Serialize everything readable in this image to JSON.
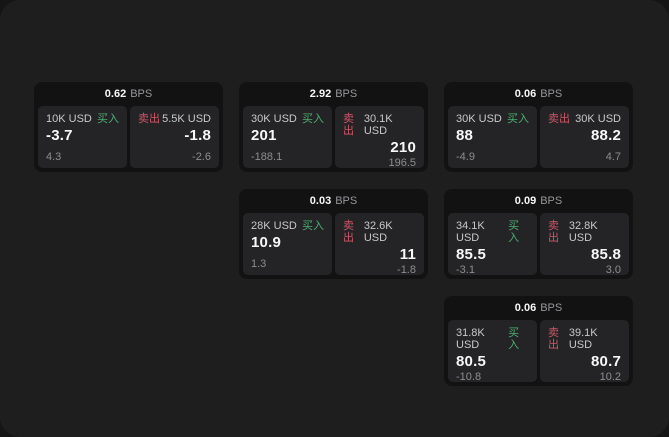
{
  "colors": {
    "window_bg": "#1e1e1f",
    "card_bg": "#121213",
    "panel_bg": "#242426",
    "buy_green": "#4cae71",
    "sell_red": "#cf5567",
    "primary_text": "#f7f7f8",
    "muted_text": "#8d8d90"
  },
  "labels": {
    "buy": "买入",
    "sell": "卖出",
    "bps_unit": "BPS"
  },
  "cards": [
    {
      "row": 1,
      "col": 1,
      "header": {
        "value": "0.62",
        "unit": "BPS"
      },
      "buy": {
        "amount": "10K USD",
        "side_label": "买入",
        "price": "-3.7",
        "delta": "4.3"
      },
      "sell": {
        "side_label": "卖出",
        "amount": "5.5K USD",
        "price": "-1.8",
        "delta": "-2.6"
      }
    },
    {
      "row": 1,
      "col": 2,
      "header": {
        "value": "2.92",
        "unit": "BPS"
      },
      "buy": {
        "amount": "30K USD",
        "side_label": "买入",
        "price": "201",
        "delta": "-188.1"
      },
      "sell": {
        "side_label": "卖出",
        "amount": "30.1K USD",
        "price": "210",
        "delta": "196.5"
      }
    },
    {
      "row": 1,
      "col": 3,
      "header": {
        "value": "0.06",
        "unit": "BPS"
      },
      "buy": {
        "amount": "30K USD",
        "side_label": "买入",
        "price": "88",
        "delta": "-4.9"
      },
      "sell": {
        "side_label": "卖出",
        "amount": "30K USD",
        "price": "88.2",
        "delta": "4.7"
      }
    },
    {
      "row": 2,
      "col": 2,
      "header": {
        "value": "0.03",
        "unit": "BPS"
      },
      "buy": {
        "amount": "28K USD",
        "side_label": "买入",
        "price": "10.9",
        "delta": "1.3"
      },
      "sell": {
        "side_label": "卖出",
        "amount": "32.6K USD",
        "price": "11",
        "delta": "-1.8"
      }
    },
    {
      "row": 2,
      "col": 3,
      "header": {
        "value": "0.09",
        "unit": "BPS"
      },
      "buy": {
        "amount": "34.1K USD",
        "side_label": "买入",
        "price": "85.5",
        "delta": "-3.1"
      },
      "sell": {
        "side_label": "卖出",
        "amount": "32.8K USD",
        "price": "85.8",
        "delta": "3.0"
      }
    },
    {
      "row": 3,
      "col": 3,
      "header": {
        "value": "0.06",
        "unit": "BPS"
      },
      "buy": {
        "amount": "31.8K USD",
        "side_label": "买入",
        "price": "80.5",
        "delta": "-10.8"
      },
      "sell": {
        "side_label": "卖出",
        "amount": "39.1K USD",
        "price": "80.7",
        "delta": "10.2"
      }
    }
  ]
}
